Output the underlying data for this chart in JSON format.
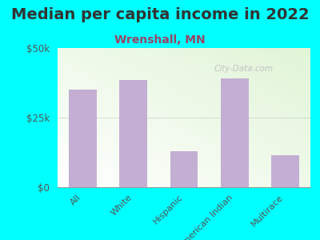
{
  "title": "Median per capita income in 2022",
  "subtitle": "Wrenshall, MN",
  "categories": [
    "All",
    "White",
    "Hispanic",
    "American Indian",
    "Multirace"
  ],
  "values": [
    35000,
    38500,
    13000,
    39000,
    11500
  ],
  "bar_color": "#c4aed4",
  "ylim": [
    0,
    50000
  ],
  "yticks": [
    0,
    25000,
    50000
  ],
  "ytick_labels": [
    "$0",
    "$25k",
    "$50k"
  ],
  "background_color": "#00ffff",
  "plot_bg_left": "#ffffff",
  "plot_bg_right": "#dff0d8",
  "title_fontsize": 14,
  "subtitle_fontsize": 10,
  "title_color": "#333333",
  "subtitle_color": "#994466",
  "tick_label_color": "#555555",
  "watermark": "City-Data.com",
  "watermark_color": "#bbbbbb"
}
